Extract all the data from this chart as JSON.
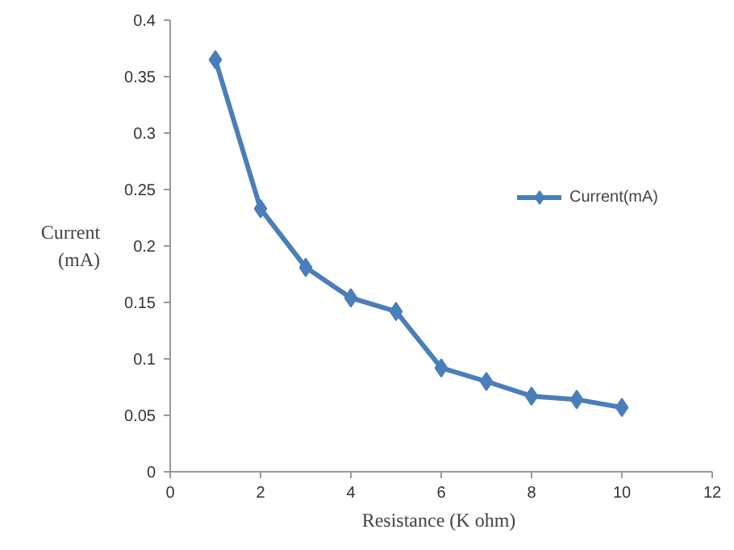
{
  "chart_data": {
    "type": "line",
    "xlabel": "Resistance  (K ohm)",
    "ylabel": "Current\n(mA)",
    "x": [
      1,
      2,
      3,
      4,
      5,
      6,
      7,
      8,
      9,
      10
    ],
    "series": [
      {
        "name": "Current(mA)",
        "color": "#4a7ebb",
        "values": [
          0.365,
          0.233,
          0.181,
          0.154,
          0.142,
          0.092,
          0.08,
          0.067,
          0.064,
          0.057
        ]
      }
    ],
    "xlim": [
      0,
      12
    ],
    "xticks": [
      0,
      2,
      4,
      6,
      8,
      10,
      12
    ],
    "ylim": [
      0,
      0.4
    ],
    "yticks": [
      0,
      0.05,
      0.1,
      0.15,
      0.2,
      0.25,
      0.3,
      0.35,
      0.4
    ],
    "grid": false,
    "legend": "right",
    "marker": "diamond",
    "line_style": "solid"
  }
}
